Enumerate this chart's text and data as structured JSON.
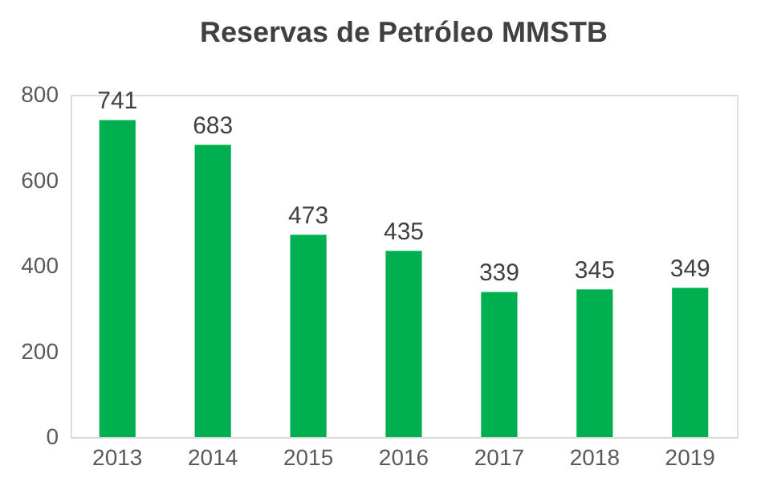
{
  "chart_data": {
    "type": "bar",
    "title": "Reservas de Petróleo MMSTB",
    "categories": [
      "2013",
      "2014",
      "2015",
      "2016",
      "2017",
      "2018",
      "2019"
    ],
    "values": [
      741,
      683,
      473,
      435,
      339,
      345,
      349
    ],
    "color": "#00b050",
    "ylim": [
      0,
      800
    ],
    "yticks": [
      0,
      200,
      400,
      600,
      800
    ],
    "grid": false,
    "data_labels": true
  }
}
